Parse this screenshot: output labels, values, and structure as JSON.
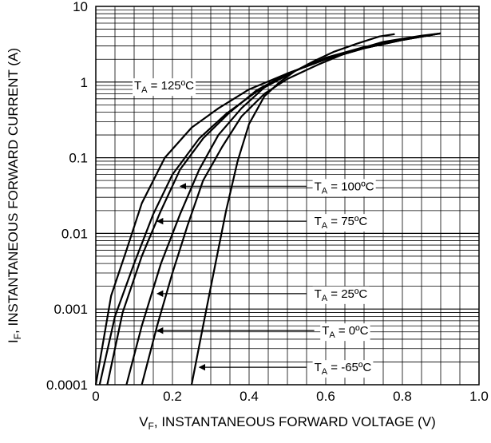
{
  "chart_data": {
    "type": "line",
    "x_scale": "linear",
    "y_scale": "log",
    "xlim": [
      0,
      1.0
    ],
    "ylim": [
      0.0001,
      10
    ],
    "x_ticks": [
      "0",
      "0.2",
      "0.4",
      "0.6",
      "0.8",
      "1.0"
    ],
    "y_ticks": [
      "0.0001",
      "0.001",
      "0.01",
      "0.1",
      "1",
      "10"
    ],
    "xlabel": {
      "main": "V",
      "sub": "F",
      "rest": ", INSTANTANEOUS FORWARD VOLTAGE (V)"
    },
    "ylabel": {
      "main": "I",
      "sub": "F",
      "rest": ", INSTANTANEOUS FORWARD CURRENT (A)"
    },
    "grid": "on",
    "series": [
      {
        "name": "T_A = 125°C",
        "label": {
          "pre": "T",
          "sub": "A",
          "post": " = 125ºC"
        },
        "x": [
          0.0,
          0.04,
          0.08,
          0.12,
          0.18,
          0.25,
          0.32,
          0.4,
          0.5,
          0.6,
          0.7,
          0.8,
          0.9
        ],
        "y": [
          0.0001,
          0.0015,
          0.006,
          0.025,
          0.1,
          0.25,
          0.45,
          0.8,
          1.3,
          2.0,
          2.8,
          3.6,
          4.4
        ]
      },
      {
        "name": "T_A = 100°C",
        "label": {
          "pre": "T",
          "sub": "A",
          "post": " = 100ºC"
        },
        "x": [
          0.01,
          0.05,
          0.1,
          0.15,
          0.2,
          0.27,
          0.34,
          0.42,
          0.5,
          0.6,
          0.7,
          0.8,
          0.9
        ],
        "y": [
          0.0001,
          0.0008,
          0.004,
          0.018,
          0.06,
          0.18,
          0.38,
          0.75,
          1.3,
          2.0,
          2.8,
          3.6,
          4.4
        ]
      },
      {
        "name": "T_A = 75°C",
        "label": {
          "pre": "T",
          "sub": "A",
          "post": " = 75ºC"
        },
        "x": [
          0.03,
          0.07,
          0.12,
          0.17,
          0.22,
          0.28,
          0.35,
          0.42,
          0.5,
          0.6,
          0.7,
          0.8,
          0.9
        ],
        "y": [
          0.0001,
          0.0009,
          0.005,
          0.02,
          0.07,
          0.18,
          0.4,
          0.78,
          1.3,
          2.0,
          2.8,
          3.6,
          4.4
        ]
      },
      {
        "name": "T_A = 25°C",
        "label": {
          "pre": "T",
          "sub": "A",
          "post": " = 25ºC"
        },
        "x": [
          0.08,
          0.12,
          0.17,
          0.22,
          0.27,
          0.32,
          0.38,
          0.44,
          0.52,
          0.6,
          0.7,
          0.8,
          0.9
        ],
        "y": [
          0.0001,
          0.0006,
          0.004,
          0.018,
          0.07,
          0.2,
          0.45,
          0.85,
          1.4,
          2.1,
          2.9,
          3.7,
          4.4
        ]
      },
      {
        "name": "T_A = 0°C",
        "label": {
          "pre": "T",
          "sub": "A",
          "post": " = 0ºC"
        },
        "x": [
          0.12,
          0.16,
          0.2,
          0.24,
          0.28,
          0.33,
          0.38,
          0.44,
          0.5,
          0.58,
          0.66,
          0.75,
          0.85,
          0.9
        ],
        "y": [
          0.0001,
          0.0006,
          0.003,
          0.013,
          0.05,
          0.14,
          0.35,
          0.7,
          1.1,
          1.7,
          2.5,
          3.4,
          4.1,
          4.4
        ]
      },
      {
        "name": "T_A = -65°C",
        "label": {
          "pre": "T",
          "sub": "A",
          "post": " = -65ºC"
        },
        "x": [
          0.25,
          0.28,
          0.31,
          0.34,
          0.37,
          0.4,
          0.44,
          0.48,
          0.52,
          0.57,
          0.62,
          0.68,
          0.74,
          0.78
        ],
        "y": [
          0.0001,
          0.0006,
          0.0035,
          0.02,
          0.09,
          0.28,
          0.65,
          1.0,
          1.4,
          1.9,
          2.5,
          3.2,
          4.0,
          4.3
        ]
      }
    ],
    "annotations": [
      {
        "series": "T_A = 125°C",
        "style": "inline",
        "label_at": [
          0.1,
          0.9
        ],
        "text_anchor": "start"
      },
      {
        "series": "T_A = 100°C",
        "style": "arrow",
        "arrow_from": [
          0.55,
          0.042
        ],
        "arrow_to": [
          0.22,
          0.042
        ],
        "label_at": [
          0.57,
          0.042
        ]
      },
      {
        "series": "T_A = 75°C",
        "style": "arrow",
        "arrow_from": [
          0.55,
          0.0145
        ],
        "arrow_to": [
          0.16,
          0.0145
        ],
        "label_at": [
          0.57,
          0.0145
        ]
      },
      {
        "series": "T_A = 25°C",
        "style": "arrow",
        "arrow_from": [
          0.55,
          0.0016
        ],
        "arrow_to": [
          0.16,
          0.0016
        ],
        "label_at": [
          0.57,
          0.0016
        ]
      },
      {
        "series": "T_A = 0°C",
        "style": "arrow",
        "arrow_from": [
          0.57,
          0.00052
        ],
        "arrow_to": [
          0.16,
          0.00052
        ],
        "label_at": [
          0.59,
          0.00052
        ]
      },
      {
        "series": "T_A = -65°C",
        "style": "arrow",
        "arrow_from": [
          0.55,
          0.00017
        ],
        "arrow_to": [
          0.27,
          0.00017
        ],
        "label_at": [
          0.57,
          0.00017
        ]
      }
    ]
  }
}
